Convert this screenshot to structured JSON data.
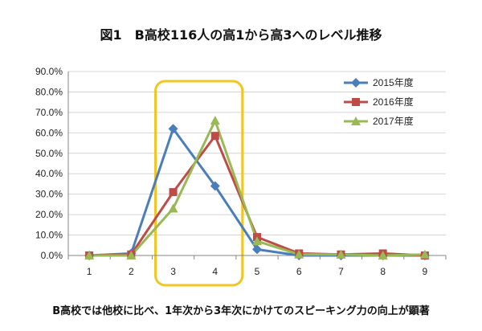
{
  "title": "図1　B高校116人の高1から高3へのレベル推移",
  "caption": "B高校では他校に比べ、1年次から3年次にかけてのスピーキング力の向上が顕著",
  "chart_data": {
    "type": "line",
    "title": "図1　B高校116人の高1から高3へのレベル推移",
    "xlabel": "",
    "ylabel": "",
    "categories": [
      "1",
      "2",
      "3",
      "4",
      "5",
      "6",
      "7",
      "8",
      "9"
    ],
    "ylim": [
      0,
      90
    ],
    "y_ticks": [
      "0.0%",
      "10.0%",
      "20.0%",
      "30.0%",
      "40.0%",
      "50.0%",
      "60.0%",
      "70.0%",
      "80.0%",
      "90.0%"
    ],
    "grid": true,
    "legend_position": "top-right",
    "highlight_categories": [
      "3",
      "4"
    ],
    "highlight_color": "#f2c522",
    "series": [
      {
        "name": "2015年度",
        "color": "#4a7ebb",
        "marker": "diamond",
        "values": [
          0.0,
          1.0,
          62.0,
          34.0,
          3.0,
          0.0,
          0.0,
          0.0,
          0.0
        ]
      },
      {
        "name": "2016年度",
        "color": "#be4b48",
        "marker": "square",
        "values": [
          0.0,
          0.5,
          31.0,
          58.5,
          9.0,
          1.0,
          0.5,
          1.0,
          0.0
        ]
      },
      {
        "name": "2017年度",
        "color": "#98b954",
        "marker": "triangle",
        "values": [
          0.0,
          0.0,
          23.0,
          66.0,
          7.0,
          0.5,
          0.5,
          0.0,
          0.5
        ]
      }
    ]
  }
}
